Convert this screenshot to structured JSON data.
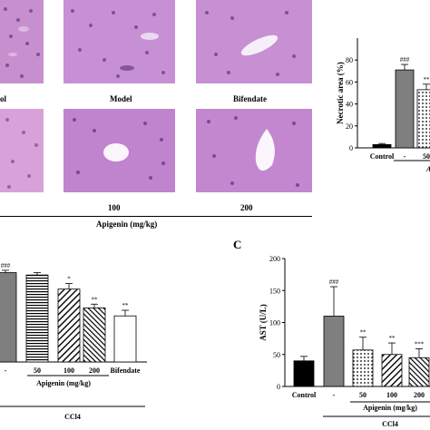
{
  "micrographs": {
    "top_labels": [
      "ol",
      "Model",
      "Bifendate"
    ],
    "bottom_labels": [
      "100",
      "200"
    ],
    "group_label": "Apigenin (mg/kg)"
  },
  "chart_data": [
    {
      "type": "bar",
      "panel": "",
      "ylabel": "Necrotic area (%)",
      "ylim": [
        0,
        100
      ],
      "yticks": [
        0,
        20,
        40,
        60,
        80
      ],
      "categories": [
        "Control",
        "-",
        "50"
      ],
      "values": [
        3,
        71,
        53
      ],
      "errors": [
        1,
        5,
        5
      ],
      "significance": [
        "",
        "###",
        "**"
      ],
      "patterns": [
        "black",
        "gray",
        "dots"
      ],
      "group_label_partial": "A"
    },
    {
      "type": "bar",
      "panel": "",
      "ylabel": "",
      "categories": [
        "-",
        "50",
        "100",
        "200",
        "Bifendate"
      ],
      "values": [
        190,
        185,
        155,
        115,
        98
      ],
      "errors": [
        5,
        5,
        12,
        8,
        12
      ],
      "significance": [
        "###",
        "",
        "*",
        "**",
        "**"
      ],
      "patterns": [
        "gray",
        "hlines",
        "diag",
        "diag2",
        "white"
      ],
      "xgroup_label": "Apigenin (mg/kg)",
      "xgroup2_label": "CCl4"
    },
    {
      "type": "bar",
      "panel": "C",
      "ylabel": "AST (U/L)",
      "ylim": [
        0,
        200
      ],
      "yticks": [
        0,
        50,
        100,
        150,
        200
      ],
      "categories": [
        "Control",
        "-",
        "50",
        "100",
        "200"
      ],
      "values": [
        40,
        110,
        57,
        50,
        45
      ],
      "errors": [
        7,
        46,
        20,
        18,
        14
      ],
      "significance": [
        "",
        "###",
        "**",
        "**",
        "***"
      ],
      "patterns": [
        "black",
        "gray",
        "dots",
        "diag",
        "diag2"
      ],
      "xgroup_label": "Apigenin (mg/kg)",
      "xgroup2_label": "CCl4"
    }
  ]
}
